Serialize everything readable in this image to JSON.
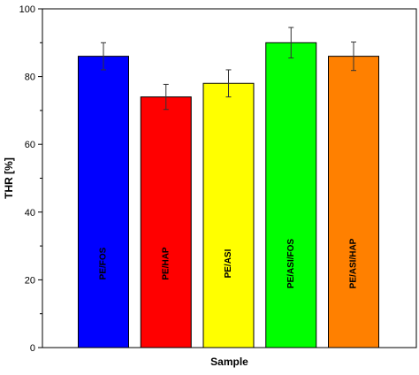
{
  "chart_data": {
    "type": "bar",
    "xlabel": "Sample",
    "ylabel": "THR [%]",
    "ylim": [
      0,
      100
    ],
    "yticks": [
      0,
      20,
      40,
      60,
      80,
      100
    ],
    "grid": false,
    "legend": "none",
    "categories": [
      "PE/FOS",
      "PE/HAP",
      "PE/ASI",
      "PE/ASI/FOS",
      "PE/ASI/HAP"
    ],
    "values": [
      86,
      74,
      78,
      90,
      86
    ],
    "errors": [
      4,
      3.7,
      4,
      4.5,
      4.2
    ],
    "colors": [
      "#0000ff",
      "#ff0000",
      "#ffff00",
      "#00ff00",
      "#ff8000"
    ],
    "category_labels_inside_bars": true
  }
}
